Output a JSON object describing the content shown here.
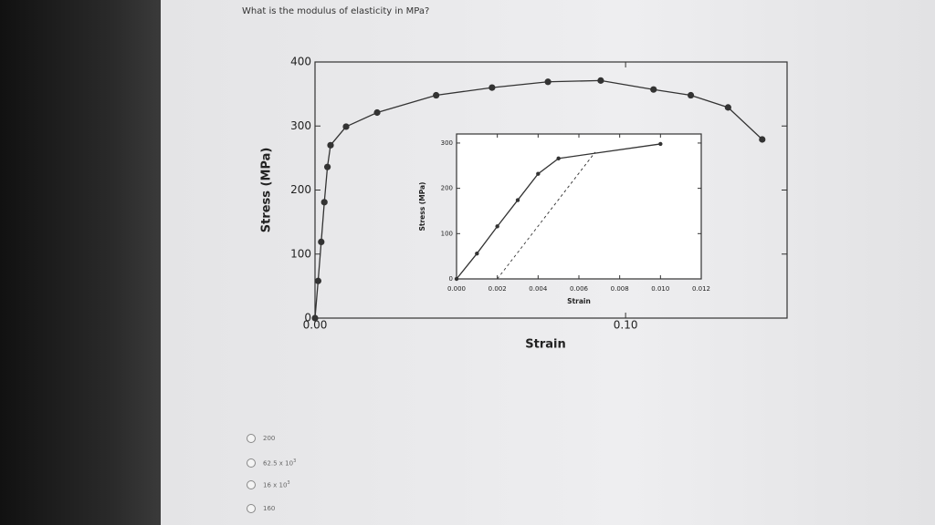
{
  "question": "What is the modulus of elasticity in MPa?",
  "chart_data": [
    {
      "type": "line",
      "xlabel": "Strain",
      "ylabel": "Stress (MPa)",
      "x": [
        0,
        0.001,
        0.002,
        0.003,
        0.004,
        0.005,
        0.01,
        0.02,
        0.039,
        0.057,
        0.075,
        0.092,
        0.109,
        0.121,
        0.133,
        0.144
      ],
      "series": [
        {
          "color": "#333333",
          "values": [
            0,
            58,
            119,
            181,
            236,
            270,
            299,
            321,
            348,
            360,
            369,
            371,
            357,
            348,
            329,
            279
          ]
        }
      ],
      "xlim": [
        0,
        0.152
      ],
      "ylim": [
        0,
        400
      ],
      "xticks": [
        {
          "value": 0,
          "label": "0.00"
        },
        {
          "value": 0.1,
          "label": "0.10"
        }
      ],
      "yticks": [
        0,
        100,
        200,
        300,
        400
      ]
    },
    {
      "type": "line",
      "xlabel": "Strain",
      "ylabel": "Stress (MPa)",
      "x": [
        0,
        0.001,
        0.002,
        0.003,
        0.004,
        0.005,
        0.01
      ],
      "series": [
        {
          "color": "#333333",
          "values": [
            0,
            56,
            116,
            174,
            232,
            266,
            298
          ]
        }
      ],
      "offset_line": {
        "x": [
          0.002,
          0.0068
        ],
        "y": [
          0,
          280
        ]
      },
      "xlim": [
        0,
        0.012
      ],
      "ylim": [
        0,
        320
      ],
      "xticks": [
        {
          "value": 0,
          "label": "0.000"
        },
        {
          "value": 0.002,
          "label": "0.002"
        },
        {
          "value": 0.004,
          "label": "0.004"
        },
        {
          "value": 0.006,
          "label": "0.006"
        },
        {
          "value": 0.008,
          "label": "0.008"
        },
        {
          "value": 0.01,
          "label": "0.010"
        },
        {
          "value": 0.012,
          "label": "0.012"
        }
      ],
      "yticks": [
        0,
        100,
        200,
        300
      ]
    }
  ],
  "options": [
    {
      "label": "200"
    },
    {
      "label": "62.5 x 10",
      "superscript": "3"
    },
    {
      "label": "16 x 10",
      "superscript": "3"
    },
    {
      "label": "160"
    }
  ]
}
